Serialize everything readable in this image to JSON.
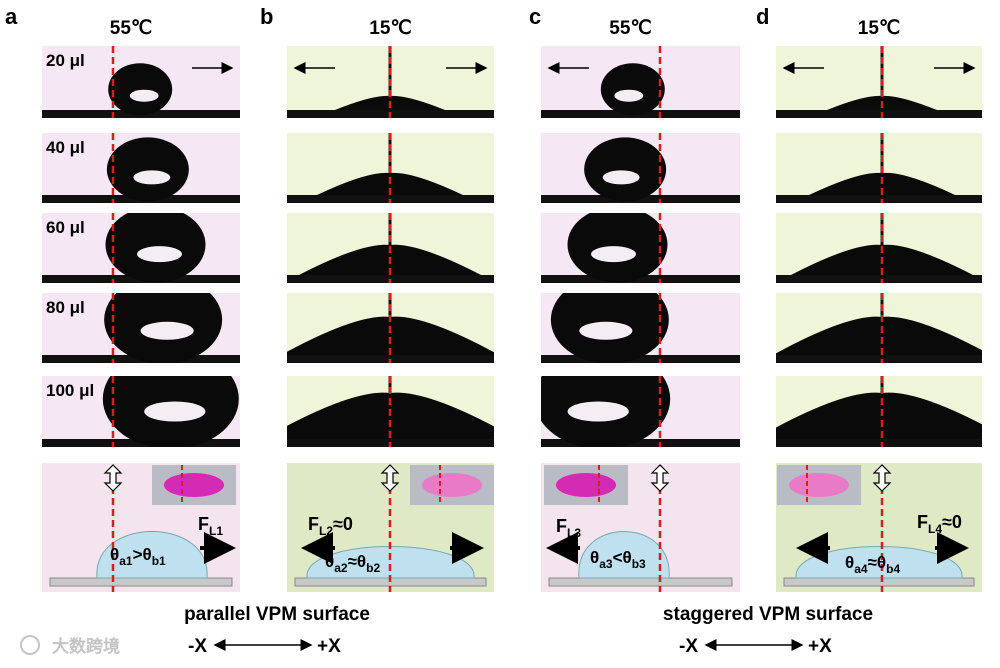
{
  "panels": [
    {
      "letter": "a",
      "temperature": "55℃",
      "force": {
        "base": "F",
        "sub": "L1"
      },
      "angle": {
        "left_base": "θ",
        "left_sub": "a1",
        "op": ">",
        "right_base": "θ",
        "right_sub": "b1"
      }
    },
    {
      "letter": "b",
      "temperature": "15℃",
      "force": {
        "base": "F",
        "sub": "L2",
        "suffix": "≈0"
      },
      "angle": {
        "left_base": "θ",
        "left_sub": "a2",
        "op": "≈",
        "right_base": "θ",
        "right_sub": "b2"
      }
    },
    {
      "letter": "c",
      "temperature": "55℃",
      "force": {
        "base": "F",
        "sub": "L3"
      },
      "angle": {
        "left_base": "θ",
        "left_sub": "a3",
        "op": "<",
        "right_base": "θ",
        "right_sub": "b3"
      }
    },
    {
      "letter": "d",
      "temperature": "15℃",
      "force": {
        "base": "F",
        "sub": "L4",
        "suffix": "≈0"
      },
      "angle": {
        "left_base": "θ",
        "left_sub": "a4",
        "op": "≈",
        "right_base": "θ",
        "right_sub": "b4"
      }
    }
  ],
  "volumes": [
    "20 μl",
    "40 μl",
    "60 μl",
    "80 μl",
    "100 μl"
  ],
  "captions": [
    {
      "text": "parallel VPM surface",
      "neg": "-X",
      "pos": "+X"
    },
    {
      "text": "staggered VPM surface",
      "neg": "-X",
      "pos": "+X"
    }
  ],
  "watermark": "大数跨境"
}
